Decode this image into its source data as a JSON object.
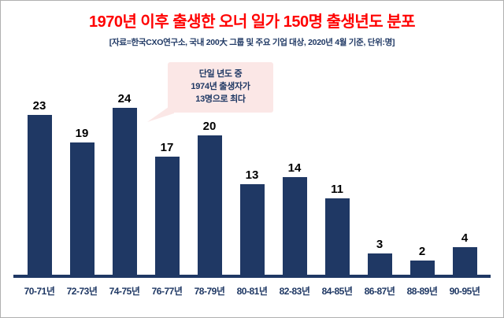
{
  "chart_data": {
    "type": "bar",
    "title": "1970년 이후 출생한 오너 일가 150명 출생년도 분포",
    "subtitle": "[자료=한국CXO연구소, 국내 200大 그룹 및 주요 기업 대상, 2020년 4월 기준, 단위:명]",
    "categories": [
      "70-71년",
      "72-73년",
      "74-75년",
      "76-77년",
      "78-79년",
      "80-81년",
      "82-83년",
      "84-85년",
      "86-87년",
      "88-89년",
      "90-95년"
    ],
    "values": [
      23,
      19,
      24,
      17,
      20,
      13,
      14,
      11,
      3,
      2,
      4
    ],
    "xlabel": "",
    "ylabel": "",
    "ylim": [
      0,
      24
    ],
    "grid": false,
    "legend": "none",
    "annotation": {
      "lines": [
        "단일 년도 중",
        "1974년 출생자가",
        "13명으로 최다"
      ],
      "target_category": "74-75년",
      "target_value_note": "13"
    }
  },
  "colors": {
    "title": "#ff0000",
    "subtitle": "#1f3864",
    "bar": "#1f3864",
    "axis": "#1f3864",
    "value_label": "#000000",
    "callout_bg": "#fbe7e6",
    "callout_text": "#1f3864"
  }
}
